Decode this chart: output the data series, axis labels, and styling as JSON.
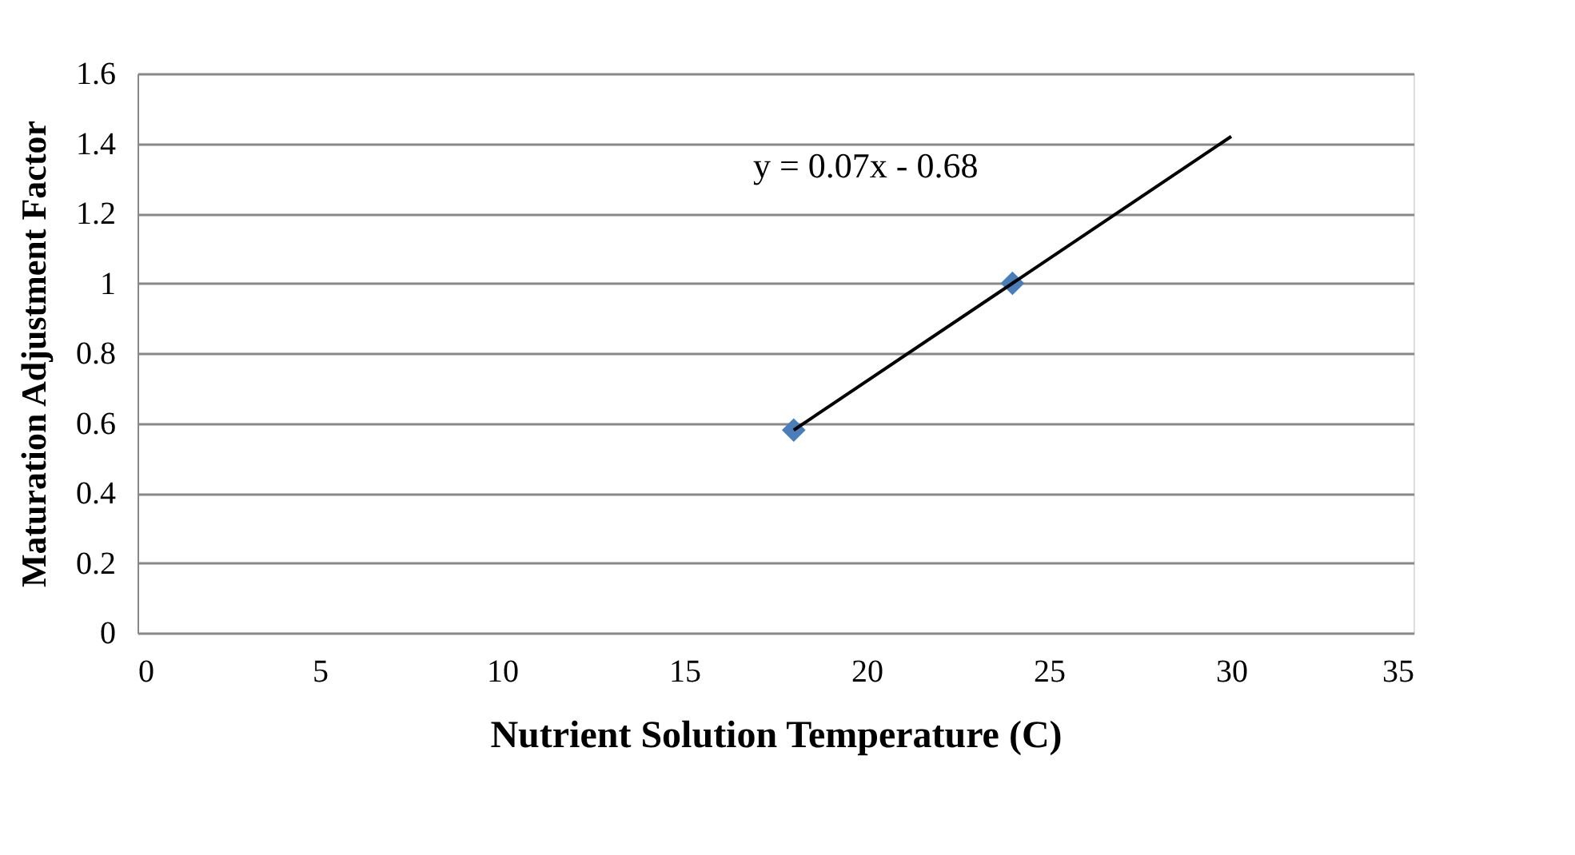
{
  "chart_data": {
    "type": "scatter",
    "xlabel": "Nutrient Solution Temperature (C)",
    "ylabel": "Maturation Adjustment Factor",
    "series": [
      {
        "color": "#4a7ebb",
        "x": [
          18,
          24
        ],
        "values": [
          0.58,
          1.0
        ],
        "marker": "diamond"
      },
      {
        "type": "line",
        "color": "#000000",
        "x": [
          18,
          30
        ],
        "values": [
          0.58,
          1.42
        ],
        "line_style": "solid"
      }
    ],
    "annotations": [
      "y = 0.07x - 0.68"
    ],
    "xlim": [
      0,
      35
    ],
    "xticks": [
      0,
      5,
      10,
      15,
      20,
      25,
      30,
      35
    ],
    "ylim": [
      0,
      1.6
    ],
    "yticks": [
      0,
      0.2,
      0.4,
      0.6,
      0.8,
      1,
      1.2,
      1.4,
      1.6
    ],
    "grid": "y",
    "legend": false
  }
}
